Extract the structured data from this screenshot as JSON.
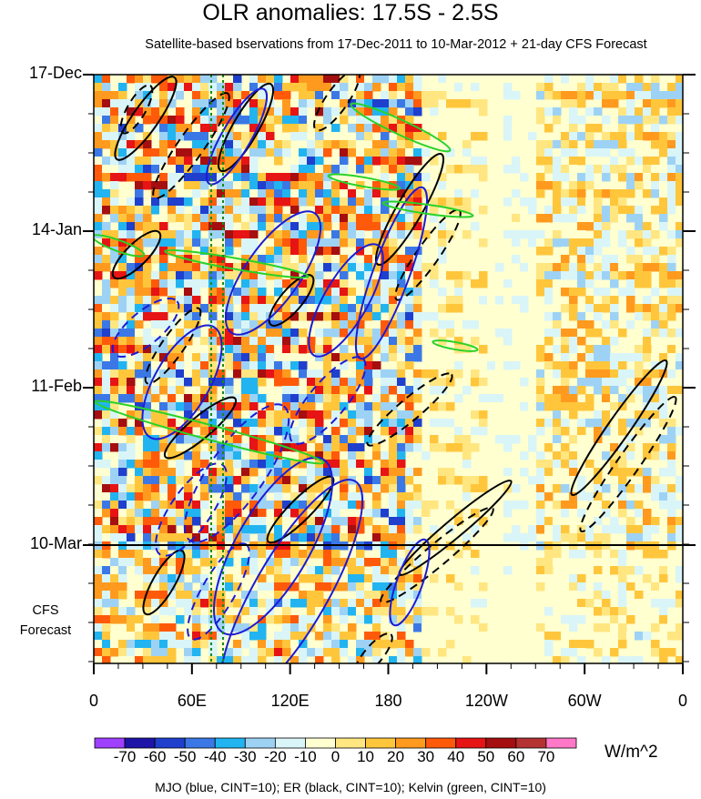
{
  "chart_data": {
    "type": "heatmap",
    "title": "OLR anomalies: 17.5S - 2.5S",
    "subtitle": "Satellite-based bservations from 17-Dec-2011 to 10-Mar-2012 + 21-day CFS Forecast",
    "x_ticks": [
      "0",
      "60E",
      "120E",
      "180",
      "120W",
      "60W",
      "0"
    ],
    "x_tick_lon": [
      0,
      60,
      120,
      180,
      240,
      300,
      360
    ],
    "y_ticks": [
      "17-Dec",
      "14-Jan",
      "11-Feb",
      "10-Mar"
    ],
    "forecast_label": "CFS\nForecast",
    "forecast_days": 21,
    "colorbar": {
      "levels": [
        -70,
        -60,
        -50,
        -40,
        -30,
        -20,
        -10,
        0,
        10,
        20,
        30,
        40,
        50,
        60,
        70
      ],
      "labels": [
        "-70",
        "-60",
        "-50",
        "-40",
        "-30",
        "-20",
        "-10",
        "0",
        "10",
        "20",
        "30",
        "40",
        "50",
        "60",
        "70"
      ],
      "colors": [
        "#9f3fff",
        "#1e14a8",
        "#1f3fcd",
        "#3b78e6",
        "#22b4f0",
        "#9ed2f5",
        "#d9f5f8",
        "#ffffd0",
        "#ffe680",
        "#ffc63c",
        "#ff9a1e",
        "#ff5a0a",
        "#e61414",
        "#a50f0f",
        "#b43232",
        "#ff78c8"
      ],
      "units": "W/m^2"
    },
    "caption": "MJO (blue, CINT=10); ER (black, CINT=10); Kelvin (green, CINT=10)",
    "colors": {
      "mjo": "#1b1bd6",
      "er": "#000000",
      "kelvin": "#28d228",
      "reference_line": "#1a8a1a"
    }
  }
}
